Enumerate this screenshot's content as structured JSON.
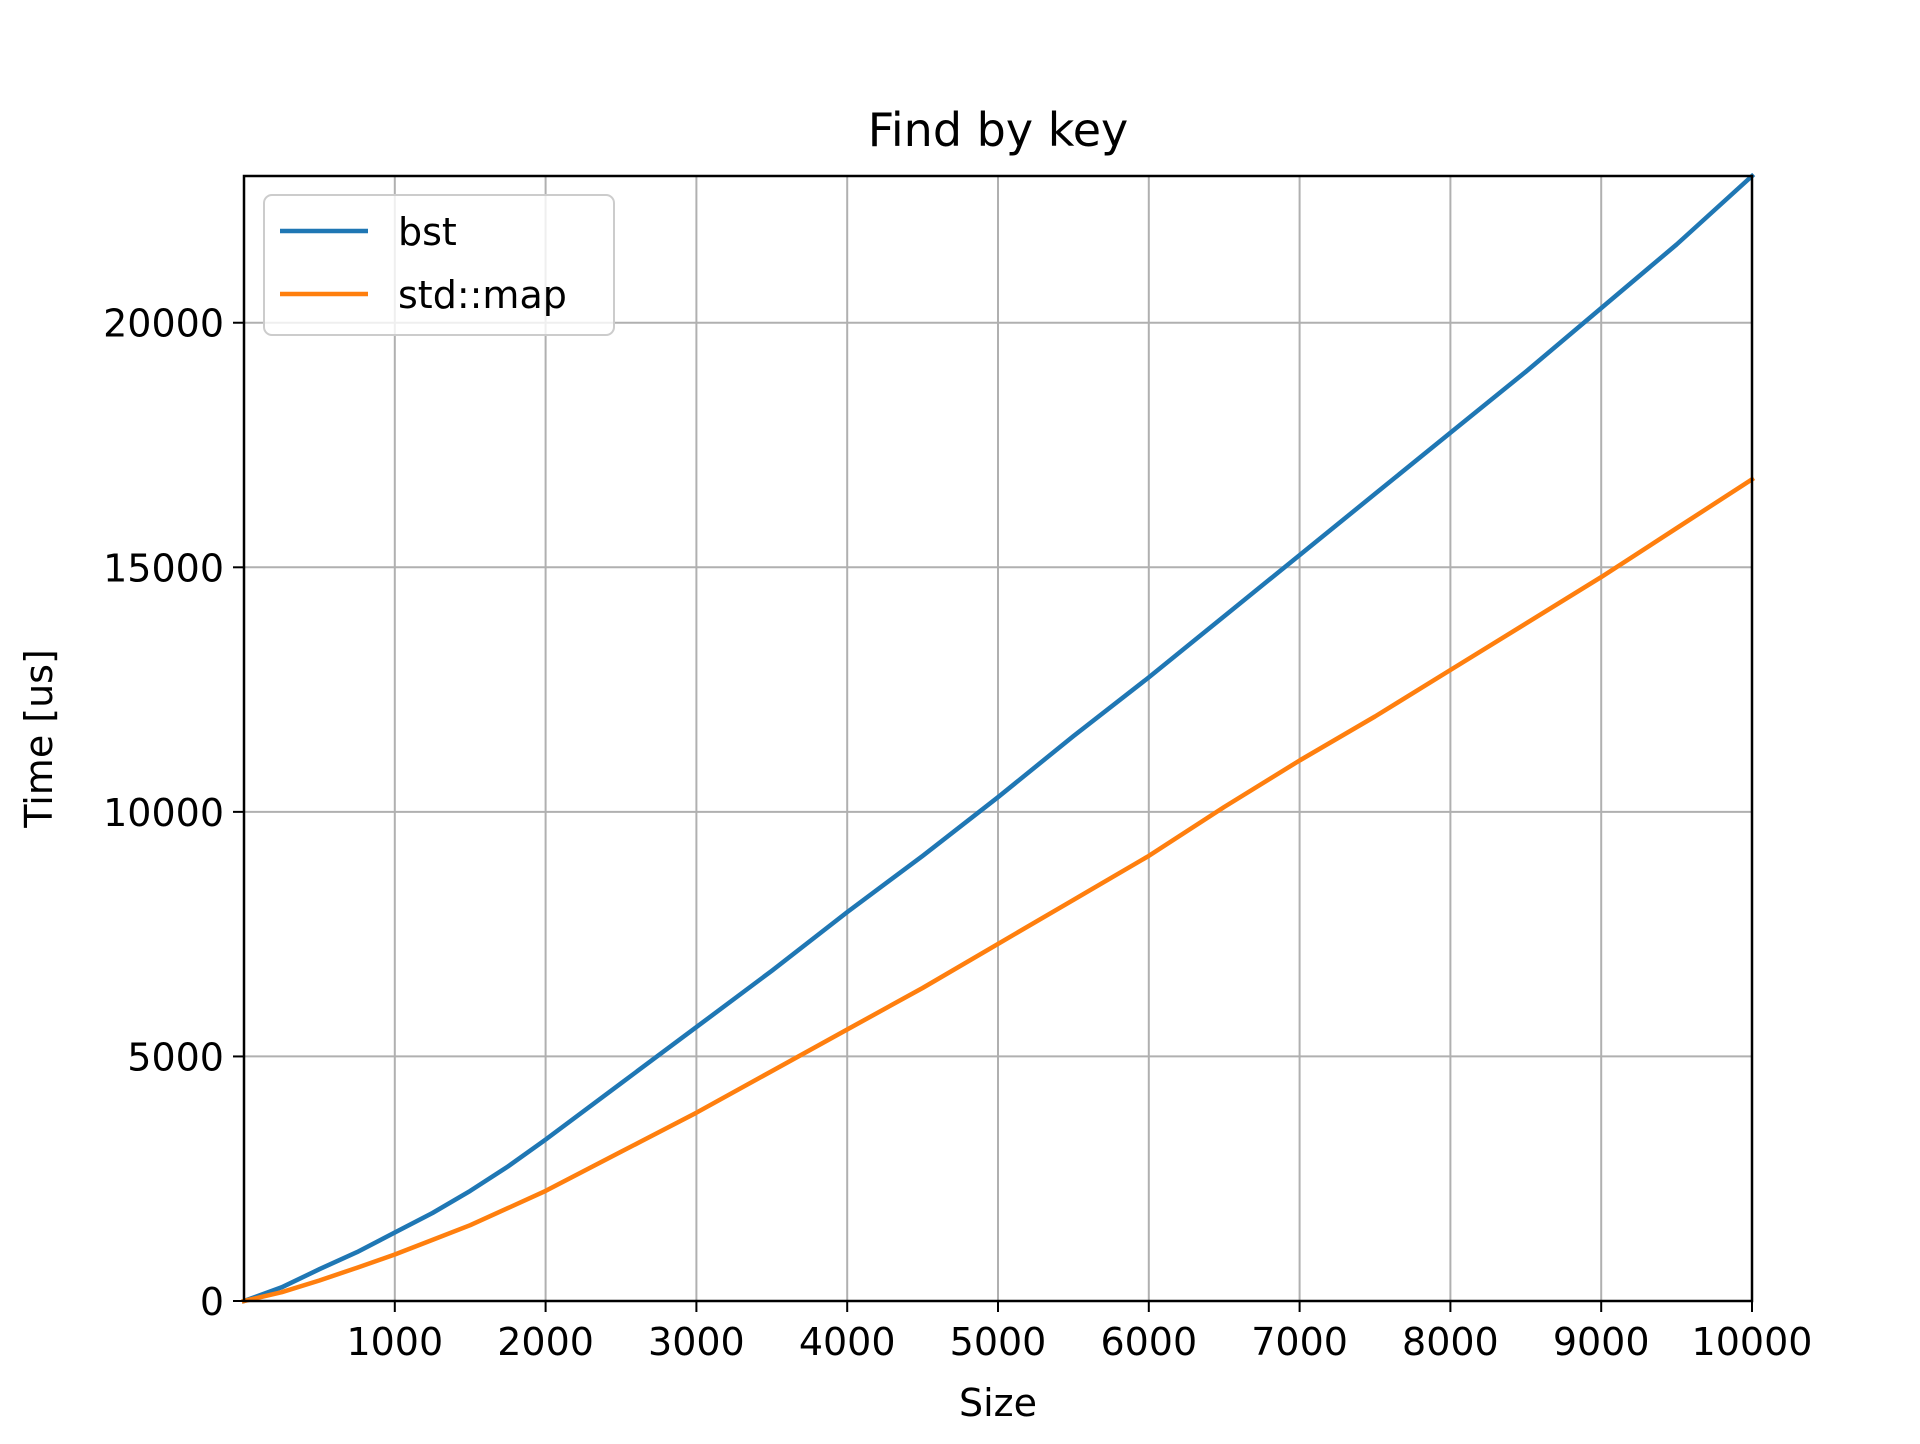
{
  "chart_data": {
    "type": "line",
    "title": "Find by key",
    "xlabel": "Size",
    "ylabel": "Time [us]",
    "xlim": [
      0,
      10000
    ],
    "ylim": [
      0,
      23000
    ],
    "xticks": [
      1000,
      2000,
      3000,
      4000,
      5000,
      6000,
      7000,
      8000,
      9000,
      10000
    ],
    "xtick_labels": [
      "1000",
      "2000",
      "3000",
      "4000",
      "5000",
      "6000",
      "7000",
      "8000",
      "9000",
      "10000"
    ],
    "yticks": [
      0,
      5000,
      10000,
      15000,
      20000
    ],
    "ytick_labels": [
      "0",
      "5000",
      "10000",
      "15000",
      "20000"
    ],
    "grid": true,
    "legend_position": "upper-left",
    "series": [
      {
        "name": "bst",
        "color": "#1f77b4",
        "x": [
          0,
          250,
          500,
          750,
          1000,
          1250,
          1500,
          1750,
          2000,
          2500,
          3000,
          3500,
          4000,
          4500,
          5000,
          5500,
          6000,
          6500,
          7000,
          7500,
          8000,
          8500,
          9000,
          9500,
          10000
        ],
        "values": [
          0,
          280,
          650,
          1000,
          1400,
          1800,
          2250,
          2750,
          3300,
          4450,
          5600,
          6750,
          7950,
          9100,
          10300,
          11550,
          12750,
          14000,
          15250,
          16500,
          17750,
          19000,
          20300,
          21600,
          23000
        ]
      },
      {
        "name": "std::map",
        "color": "#ff7f0e",
        "x": [
          0,
          250,
          500,
          750,
          1000,
          1250,
          1500,
          1750,
          2000,
          2500,
          3000,
          3500,
          4000,
          4500,
          5000,
          5500,
          6000,
          6500,
          7000,
          7500,
          8000,
          8500,
          9000,
          9500,
          10000
        ],
        "values": [
          0,
          180,
          420,
          680,
          950,
          1250,
          1550,
          1900,
          2250,
          3050,
          3850,
          4700,
          5550,
          6400,
          7300,
          8200,
          9100,
          10100,
          11050,
          11950,
          12900,
          13850,
          14800,
          15800,
          16800
        ]
      }
    ]
  }
}
